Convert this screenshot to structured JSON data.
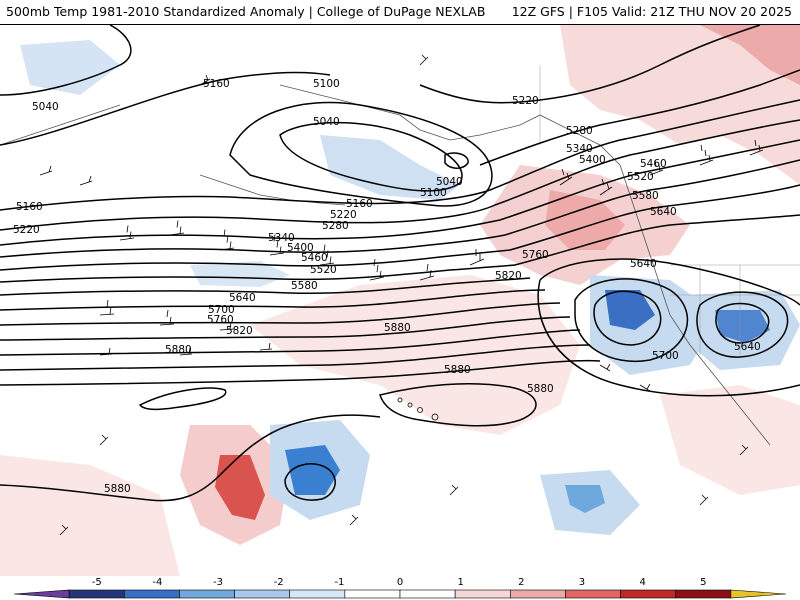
{
  "header": {
    "left_text": "500mb Temp 1981-2010 Standardized Anomaly | College of DuPage NEXLAB",
    "right_text": "12Z GFS | F105 Valid: 21Z THU NOV 20 2025"
  },
  "colorbar": {
    "ticks": [
      "-5",
      "-4",
      "-3",
      "-2",
      "-1",
      "0",
      "1",
      "2",
      "3",
      "4",
      "5"
    ],
    "colors": [
      "#6a3d9a",
      "#24367a",
      "#3a6fc4",
      "#6fa8dc",
      "#a8c9ea",
      "#d9e7f5",
      "#ffffff",
      "#ffffff",
      "#f6d6d6",
      "#eea9a9",
      "#e06666",
      "#c0282c",
      "#8b1014",
      "#e6c229"
    ]
  },
  "height_labels": [
    {
      "name": "label-5040-nw",
      "text": "5040"
    },
    {
      "name": "label-5160-n",
      "text": "5160"
    },
    {
      "name": "label-5100-top",
      "text": "5100"
    },
    {
      "name": "label-5040-low",
      "text": "5040"
    },
    {
      "name": "label-5040-low2",
      "text": "5040"
    },
    {
      "name": "label-5100-low",
      "text": "5100"
    },
    {
      "name": "label-5220-ne",
      "text": "5220"
    },
    {
      "name": "label-5280-ne",
      "text": "5280"
    },
    {
      "name": "label-5340-ne",
      "text": "5340"
    },
    {
      "name": "label-5400-ne",
      "text": "5400"
    },
    {
      "name": "label-5460-ne",
      "text": "5460"
    },
    {
      "name": "label-5520-ne",
      "text": "5520"
    },
    {
      "name": "label-5580-ne",
      "text": "5580"
    },
    {
      "name": "label-5640-ne",
      "text": "5640"
    },
    {
      "name": "label-5160-w",
      "text": "5160"
    },
    {
      "name": "label-5220-w",
      "text": "5220"
    },
    {
      "name": "label-5160-c",
      "text": "5160"
    },
    {
      "name": "label-5220-c",
      "text": "5220"
    },
    {
      "name": "label-5280-c",
      "text": "5280"
    },
    {
      "name": "label-5340-c",
      "text": "5340"
    },
    {
      "name": "label-5400-c",
      "text": "5400"
    },
    {
      "name": "label-5460-c",
      "text": "5460"
    },
    {
      "name": "label-5520-c",
      "text": "5520"
    },
    {
      "name": "label-5580-c",
      "text": "5580"
    },
    {
      "name": "label-5640-c",
      "text": "5640"
    },
    {
      "name": "label-5700-c",
      "text": "5700"
    },
    {
      "name": "label-5760-c",
      "text": "5760"
    },
    {
      "name": "label-5820-c",
      "text": "5820"
    },
    {
      "name": "label-5880-c",
      "text": "5880"
    },
    {
      "name": "label-5880-w",
      "text": "5880"
    },
    {
      "name": "label-5760-e",
      "text": "5760"
    },
    {
      "name": "label-5820-e",
      "text": "5820"
    },
    {
      "name": "label-5880-s",
      "text": "5880"
    },
    {
      "name": "label-5880-se",
      "text": "5880"
    },
    {
      "name": "label-5640-cutoff",
      "text": "5640"
    },
    {
      "name": "label-5700-cutoff",
      "text": "5700"
    },
    {
      "name": "label-5640-sw-us",
      "text": "5640"
    },
    {
      "name": "label-5880-sw",
      "text": "5880"
    }
  ]
}
